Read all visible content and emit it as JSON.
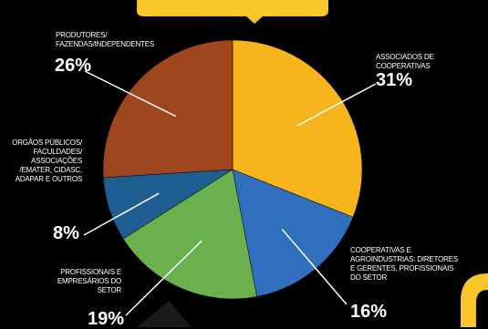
{
  "chart_data": {
    "type": "pie",
    "slices": [
      {
        "label": "ASSOCIADOS DE COOPERATIVAS",
        "value": 31,
        "value_label": "31%",
        "color": "#F7B51D"
      },
      {
        "label": "COOPERATIVAS E AGROINDUSTRIAS: DIRETORES E GERENTES, PROFISSIONAIS DO SETOR",
        "value": 16,
        "value_label": "16%",
        "color": "#2F6FBE"
      },
      {
        "label": "PROFISSIONAIS E EMPRESÁRIOS DO SETOR",
        "value": 19,
        "value_label": "19%",
        "color": "#6AB14E"
      },
      {
        "label": "ORGÃOS PÚBLICOS/ FACULDADES/ ASSOCIAÇÕES /EMATER, CIDASC, ADAPAR E OUTROS",
        "value": 8,
        "value_label": "8%",
        "color": "#1E5E93"
      },
      {
        "label": "PRODUTORES/ FAZENDAS/INDEPENDENTES",
        "value": 26,
        "value_label": "26%",
        "color": "#A0461E"
      }
    ]
  },
  "colors": {
    "background": "#000000",
    "banner": "#F7C52A",
    "leader_lines": "#FFFFFF"
  }
}
